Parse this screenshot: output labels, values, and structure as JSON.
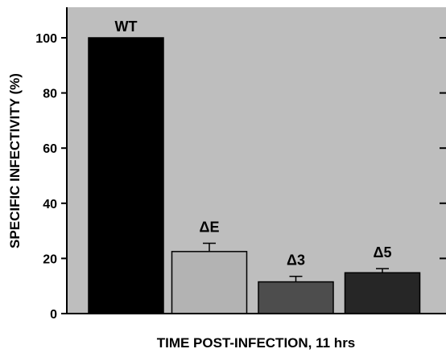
{
  "chart_data": {
    "type": "bar",
    "categories": [
      "WT",
      "ΔE",
      "Δ3",
      "Δ5"
    ],
    "values": [
      100,
      22.5,
      11.5,
      14.8
    ],
    "errors": [
      0,
      3,
      2,
      1.5
    ],
    "colors": [
      "#000000",
      "#b3b3b3",
      "#4d4d4d",
      "#262626"
    ],
    "xlabel": "TIME POST-INFECTION, 11 hrs",
    "ylabel": "SPECIFIC INFECTIVITY (%)",
    "yticks": [
      0,
      20,
      40,
      60,
      80,
      100
    ],
    "ylim": [
      0,
      110
    ],
    "background": "#bebebe",
    "grid": false
  }
}
